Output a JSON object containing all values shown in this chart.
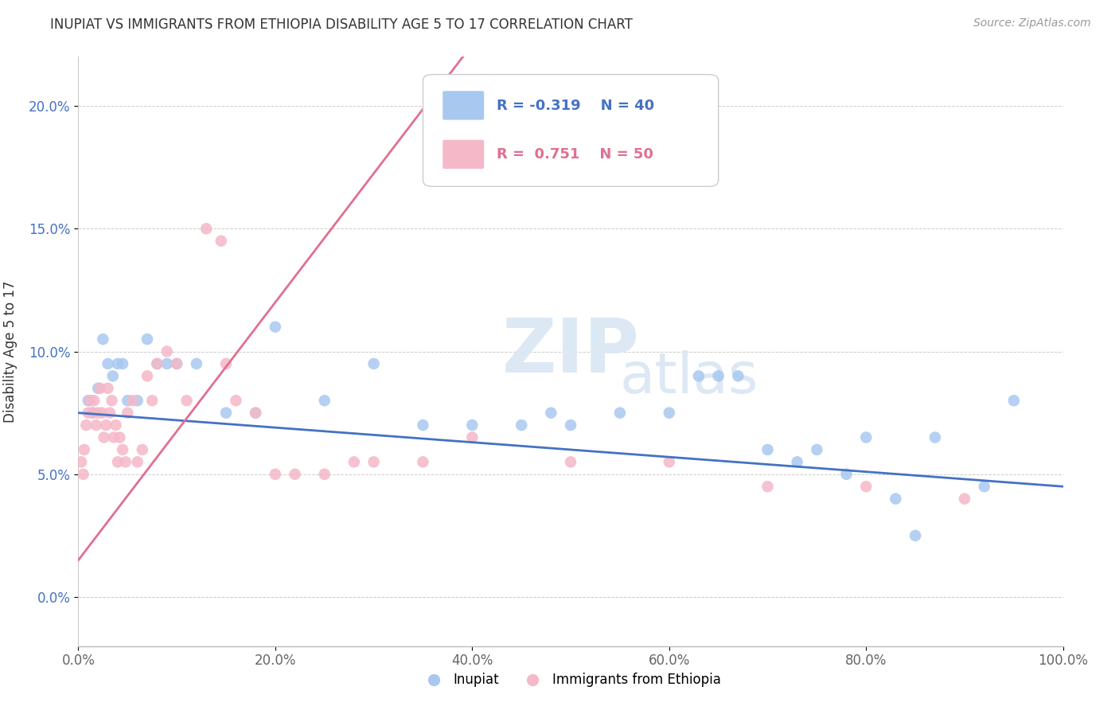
{
  "title": "INUPIAT VS IMMIGRANTS FROM ETHIOPIA DISABILITY AGE 5 TO 17 CORRELATION CHART",
  "source": "Source: ZipAtlas.com",
  "ylabel": "Disability Age 5 to 17",
  "xlim": [
    0.0,
    100.0
  ],
  "ylim": [
    -2.0,
    22.0
  ],
  "x_ticks": [
    0,
    20,
    40,
    60,
    80,
    100
  ],
  "x_tick_labels": [
    "0.0%",
    "20.0%",
    "40.0%",
    "60.0%",
    "80.0%",
    "100.0%"
  ],
  "y_ticks": [
    0,
    5,
    10,
    15,
    20
  ],
  "y_tick_labels": [
    "0.0%",
    "5.0%",
    "10.0%",
    "15.0%",
    "20.0%"
  ],
  "blue_r": "-0.319",
  "blue_n": "40",
  "pink_r": "0.751",
  "pink_n": "50",
  "blue_color": "#a8c8f0",
  "pink_color": "#f5b8c8",
  "blue_line_color": "#4472c4",
  "pink_line_color": "#e07090",
  "legend_label_blue": "Inupiat",
  "legend_label_pink": "Immigrants from Ethiopia",
  "blue_scatter_x": [
    1.0,
    1.5,
    2.0,
    2.5,
    3.0,
    3.5,
    4.0,
    4.5,
    5.0,
    6.0,
    7.0,
    8.0,
    9.0,
    10.0,
    12.0,
    15.0,
    18.0,
    20.0,
    25.0,
    30.0,
    35.0,
    40.0,
    45.0,
    48.0,
    50.0,
    55.0,
    60.0,
    63.0,
    65.0,
    67.0,
    70.0,
    73.0,
    75.0,
    78.0,
    80.0,
    83.0,
    85.0,
    87.0,
    92.0,
    95.0
  ],
  "blue_scatter_y": [
    8.0,
    7.5,
    8.5,
    10.5,
    9.5,
    9.0,
    9.5,
    9.5,
    8.0,
    8.0,
    10.5,
    9.5,
    9.5,
    9.5,
    9.5,
    7.5,
    7.5,
    11.0,
    8.0,
    9.5,
    7.0,
    7.0,
    7.0,
    7.5,
    7.0,
    7.5,
    7.5,
    9.0,
    9.0,
    9.0,
    6.0,
    5.5,
    6.0,
    5.0,
    6.5,
    4.0,
    2.5,
    6.5,
    4.5,
    8.0
  ],
  "pink_scatter_x": [
    0.3,
    0.5,
    0.6,
    0.8,
    1.0,
    1.2,
    1.4,
    1.6,
    1.8,
    2.0,
    2.2,
    2.4,
    2.6,
    2.8,
    3.0,
    3.2,
    3.4,
    3.6,
    3.8,
    4.0,
    4.2,
    4.5,
    4.8,
    5.0,
    5.5,
    6.0,
    6.5,
    7.0,
    7.5,
    8.0,
    9.0,
    10.0,
    11.0,
    13.0,
    14.5,
    15.0,
    16.0,
    18.0,
    20.0,
    22.0,
    25.0,
    28.0,
    30.0,
    35.0,
    40.0,
    50.0,
    60.0,
    70.0,
    80.0,
    90.0
  ],
  "pink_scatter_y": [
    5.5,
    5.0,
    6.0,
    7.0,
    7.5,
    8.0,
    7.5,
    8.0,
    7.0,
    7.5,
    8.5,
    7.5,
    6.5,
    7.0,
    8.5,
    7.5,
    8.0,
    6.5,
    7.0,
    5.5,
    6.5,
    6.0,
    5.5,
    7.5,
    8.0,
    5.5,
    6.0,
    9.0,
    8.0,
    9.5,
    10.0,
    9.5,
    8.0,
    15.0,
    14.5,
    9.5,
    8.0,
    7.5,
    5.0,
    5.0,
    5.0,
    5.5,
    5.5,
    5.5,
    6.5,
    5.5,
    5.5,
    4.5,
    4.5,
    4.0
  ]
}
